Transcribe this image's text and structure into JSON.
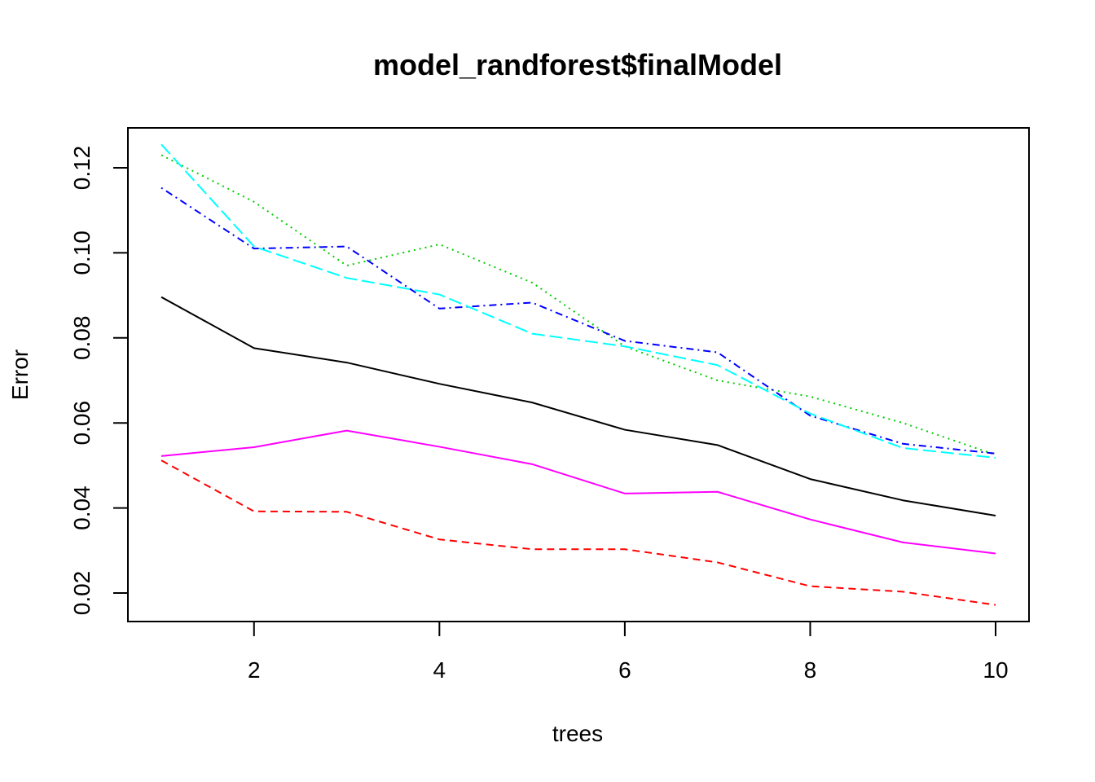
{
  "chart_data": {
    "type": "line",
    "title": "model_randforest$finalModel",
    "xlabel": "trees",
    "ylabel": "Error",
    "xlim": [
      1,
      10
    ],
    "ylim": [
      0.0145,
      0.1305
    ],
    "x": [
      1,
      2,
      3,
      4,
      5,
      6,
      7,
      8,
      9,
      10
    ],
    "xticks": [
      2,
      4,
      6,
      8,
      10
    ],
    "xtick_labels": [
      "2",
      "4",
      "6",
      "8",
      "10"
    ],
    "yticks": [
      0.02,
      0.04,
      0.06,
      0.08,
      0.1,
      0.12
    ],
    "ytick_labels": [
      "0.02",
      "0.04",
      "0.06",
      "0.08",
      "0.10",
      "0.12"
    ],
    "grid": false,
    "legend": "none",
    "series": [
      {
        "color": "#000000",
        "dash": "solid",
        "values": [
          0.0896,
          0.0776,
          0.0742,
          0.0692,
          0.0648,
          0.0584,
          0.0548,
          0.0468,
          0.0418,
          0.0382
        ]
      },
      {
        "color": "#FF0000",
        "dash": "dashed",
        "values": [
          0.0512,
          0.0392,
          0.0391,
          0.0326,
          0.0303,
          0.0303,
          0.0272,
          0.0216,
          0.0203,
          0.0172
        ]
      },
      {
        "color": "#00CD00",
        "dash": "dotted",
        "values": [
          0.123,
          0.112,
          0.097,
          0.102,
          0.093,
          0.078,
          0.07,
          0.0662,
          0.06,
          0.0525
        ]
      },
      {
        "color": "#0000FF",
        "dash": "dotdash",
        "values": [
          0.1153,
          0.101,
          0.1015,
          0.0869,
          0.0883,
          0.0793,
          0.0766,
          0.0617,
          0.0551,
          0.0528
        ]
      },
      {
        "color": "#00FFFF",
        "dash": "longdash",
        "values": [
          0.1255,
          0.1015,
          0.0941,
          0.0902,
          0.081,
          0.078,
          0.0736,
          0.0622,
          0.0541,
          0.0518
        ]
      },
      {
        "color": "#FF00FF",
        "dash": "solid",
        "values": [
          0.0522,
          0.0543,
          0.0582,
          0.0544,
          0.0503,
          0.0434,
          0.0438,
          0.0373,
          0.0319,
          0.0293
        ]
      }
    ]
  }
}
